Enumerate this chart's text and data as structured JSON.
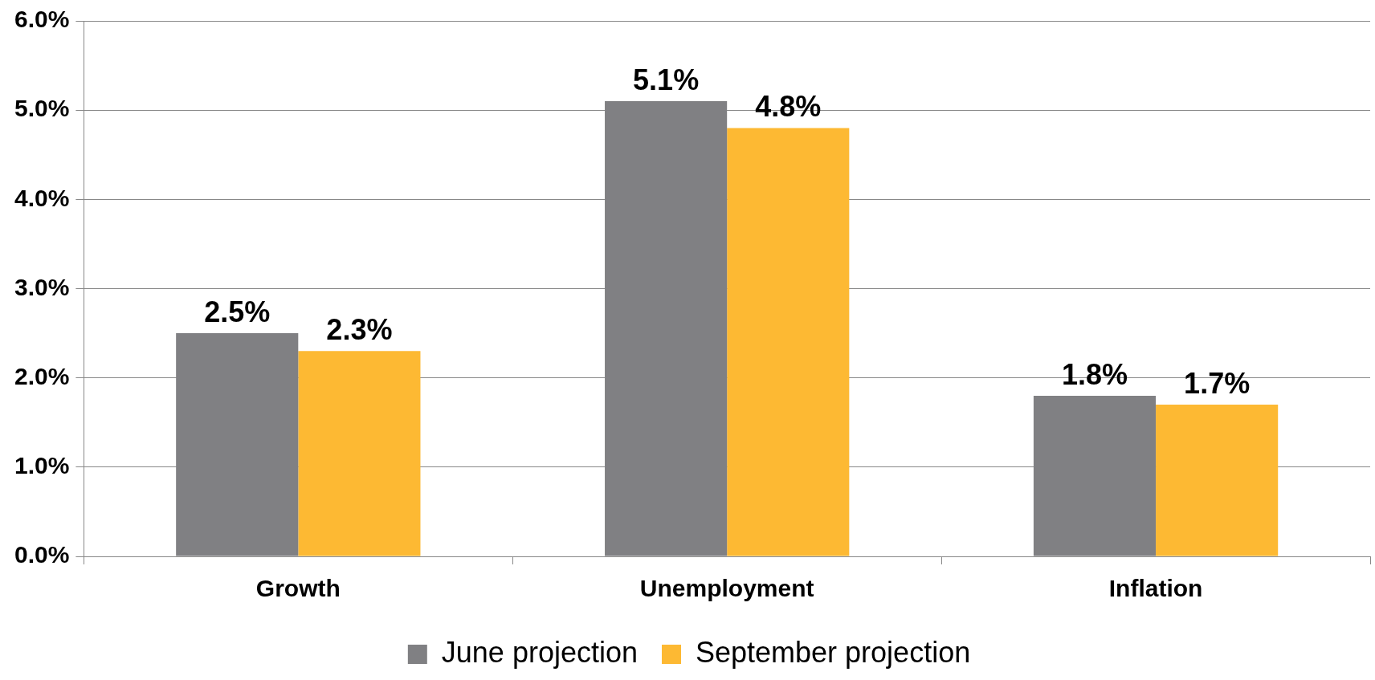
{
  "chart_data": {
    "type": "bar",
    "categories": [
      "Growth",
      "Unemployment",
      "Inflation"
    ],
    "series": [
      {
        "name": "June projection",
        "color": "#808083",
        "values": [
          2.5,
          5.1,
          1.8
        ],
        "value_labels": [
          "2.5%",
          "5.1%",
          "1.8%"
        ]
      },
      {
        "name": "September projection",
        "color": "#fdb933",
        "values": [
          2.3,
          4.8,
          1.7
        ],
        "value_labels": [
          "2.3%",
          "4.8%",
          "1.7%"
        ]
      }
    ],
    "ylim": [
      0,
      6
    ],
    "yticks": [
      {
        "value": 0,
        "label": "0.0%"
      },
      {
        "value": 1,
        "label": "1.0%"
      },
      {
        "value": 2,
        "label": "2.0%"
      },
      {
        "value": 3,
        "label": "3.0%"
      },
      {
        "value": 4,
        "label": "4.0%"
      },
      {
        "value": 5,
        "label": "5.0%"
      },
      {
        "value": 6,
        "label": "6.0%"
      }
    ],
    "grid": "y",
    "legend": "bottom"
  }
}
